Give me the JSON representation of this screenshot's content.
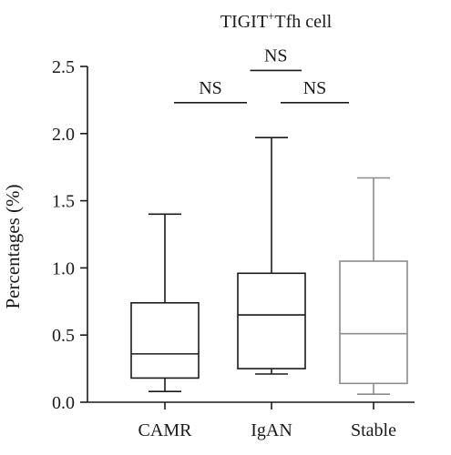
{
  "chart_data": {
    "type": "box",
    "title": {
      "main": "TIGIT",
      "sup": "+",
      "rest": "Tfh cell"
    },
    "ylabel": "Percentages (%)",
    "xlabel": "",
    "ylim": [
      0,
      2.5
    ],
    "yticks": [
      "0.0",
      "0.5",
      "1.0",
      "1.5",
      "2.0",
      "2.5"
    ],
    "grid": false,
    "categories": [
      "CAMR",
      "IgAN",
      "Stable"
    ],
    "boxes": [
      {
        "name": "CAMR",
        "min": 0.08,
        "q1": 0.18,
        "median": 0.36,
        "q3": 0.74,
        "max": 1.4,
        "color": "#1a1a1a"
      },
      {
        "name": "IgAN",
        "min": 0.21,
        "q1": 0.25,
        "median": 0.65,
        "q3": 0.96,
        "max": 1.97,
        "color": "#1a1a1a"
      },
      {
        "name": "Stable",
        "min": 0.06,
        "q1": 0.14,
        "median": 0.51,
        "q3": 1.05,
        "max": 1.67,
        "color": "#8c8c8c"
      }
    ],
    "comparisons": [
      {
        "from": "CAMR",
        "to": "IgAN",
        "label": "NS",
        "y": 2.23
      },
      {
        "from": "IgAN",
        "to": "Stable",
        "label": "NS",
        "y": 2.23
      },
      {
        "from": "CAMR",
        "to": "Stable",
        "label": "NS",
        "y": 2.47
      }
    ]
  }
}
